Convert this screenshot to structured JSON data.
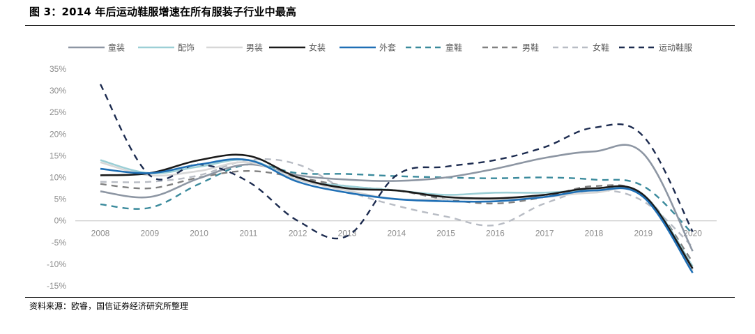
{
  "title": "图 3：2014 年后运动鞋服增速在所有服装子行业中最高",
  "source": "资料来源：欧睿，国信证券经济研究所整理",
  "chart_data": {
    "type": "line",
    "categories": [
      "2008",
      "2009",
      "2010",
      "2011",
      "2012",
      "2013",
      "2014",
      "2015",
      "2016",
      "2017",
      "2018",
      "2019",
      "2020"
    ],
    "y_unit": "%",
    "ylim": [
      -15,
      35
    ],
    "yticks": [
      35,
      30,
      25,
      20,
      15,
      10,
      5,
      0,
      -5,
      -10,
      -15
    ],
    "ytick_labels": [
      "35%",
      "30%",
      "25%",
      "20%",
      "15%",
      "10%",
      "5%",
      "0%",
      "-5%",
      "-10%",
      "-15%"
    ],
    "legend_position": "top",
    "grid": false,
    "series": [
      {
        "name": "童装",
        "color": "#8d96a3",
        "dash": "solid",
        "values": [
          6.8,
          5.5,
          9.8,
          13.0,
          10.5,
          9.5,
          9.2,
          10.0,
          12.0,
          14.5,
          16.0,
          15.5,
          -7.0
        ]
      },
      {
        "name": "配饰",
        "color": "#9ccfd6",
        "dash": "solid",
        "values": [
          14.0,
          11.0,
          12.5,
          14.0,
          9.5,
          8.0,
          7.0,
          6.0,
          6.5,
          6.5,
          7.0,
          6.0,
          -10.5
        ]
      },
      {
        "name": "男装",
        "color": "#d7d7d7",
        "dash": "solid",
        "values": [
          13.5,
          10.5,
          11.5,
          13.5,
          9.5,
          7.0,
          5.0,
          5.0,
          5.0,
          5.5,
          6.5,
          6.0,
          -11.5
        ]
      },
      {
        "name": "女装",
        "color": "#1a1a1a",
        "dash": "solid",
        "values": [
          10.5,
          11.0,
          14.0,
          15.0,
          10.0,
          7.5,
          7.0,
          5.5,
          5.2,
          6.0,
          7.5,
          6.0,
          -11.0
        ]
      },
      {
        "name": "外套",
        "color": "#1f6fb5",
        "dash": "solid",
        "values": [
          12.0,
          11.0,
          13.0,
          14.0,
          9.0,
          6.5,
          5.0,
          4.5,
          4.5,
          5.5,
          7.0,
          5.5,
          -12.0
        ]
      },
      {
        "name": "童鞋",
        "color": "#3a8a9c",
        "dash": "dashed",
        "values": [
          3.8,
          3.0,
          8.5,
          13.0,
          11.0,
          10.8,
          10.3,
          10.0,
          9.8,
          10.0,
          9.5,
          8.0,
          -3.0
        ]
      },
      {
        "name": "男鞋",
        "color": "#808080",
        "dash": "dashed",
        "values": [
          8.5,
          7.5,
          10.0,
          11.5,
          10.0,
          8.0,
          7.0,
          5.0,
          4.0,
          5.5,
          8.0,
          6.0,
          -9.5
        ]
      },
      {
        "name": "女鞋",
        "color": "#b8bcc4",
        "dash": "dashed",
        "values": [
          9.0,
          9.0,
          10.5,
          14.0,
          13.0,
          7.0,
          3.5,
          1.0,
          -1.0,
          4.0,
          7.0,
          4.5,
          -6.0
        ]
      },
      {
        "name": "运动鞋服",
        "color": "#1c2b4f",
        "dash": "dashed",
        "values": [
          31.5,
          10.5,
          13.0,
          9.0,
          0.0,
          -3.5,
          10.5,
          12.5,
          14.0,
          17.0,
          21.5,
          19.5,
          -2.5
        ]
      }
    ]
  }
}
